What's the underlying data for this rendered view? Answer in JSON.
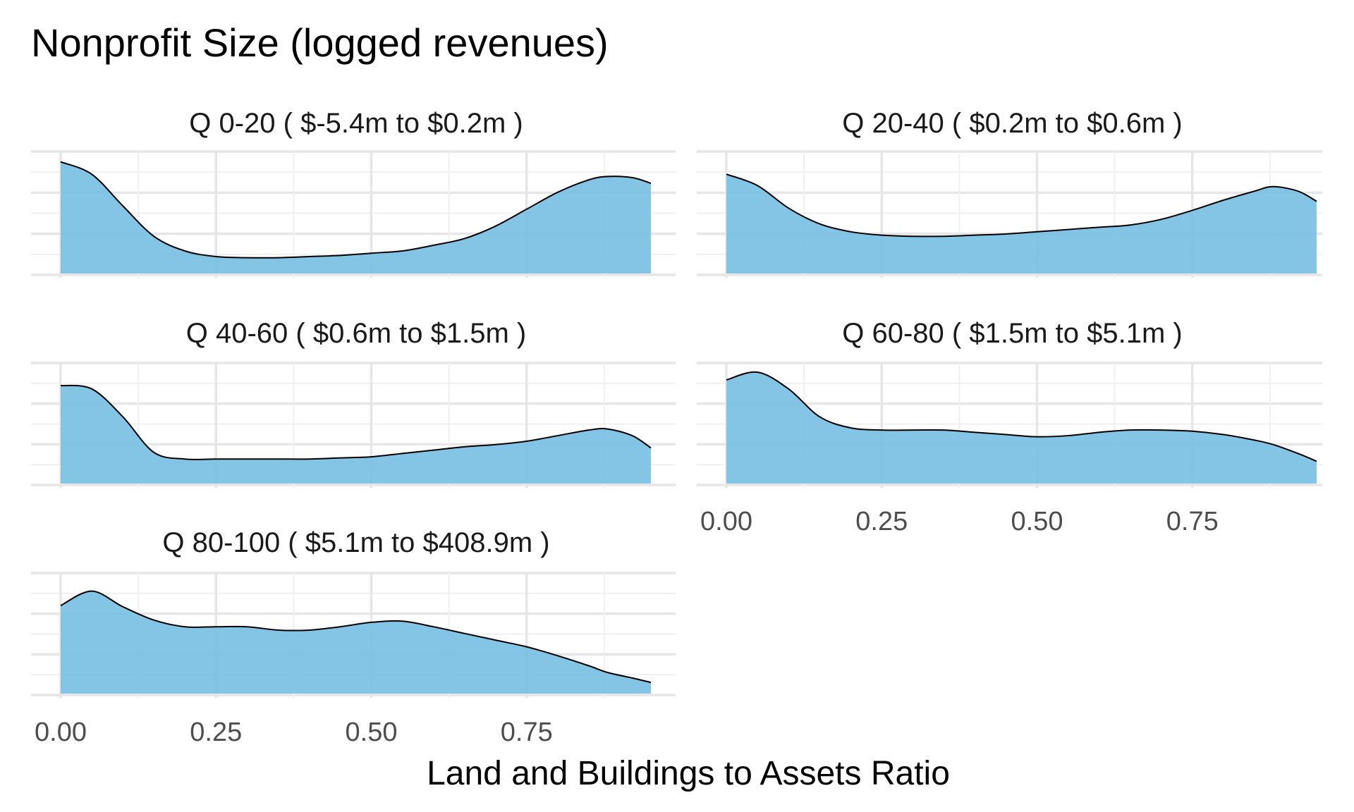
{
  "chart_data": {
    "type": "area",
    "title": "Nonprofit Size (logged revenues)",
    "xlabel": "Land and Buildings to Assets Ratio",
    "ylabel": "",
    "xlim": [
      0.0,
      0.95
    ],
    "x_ticks": [
      "0.00",
      "0.25",
      "0.50",
      "0.75"
    ],
    "y_ticks_shown": false,
    "grid": true,
    "fill_color": "#77bfe3",
    "fill_opacity": 0.9,
    "line_color": "#000000",
    "panels": [
      {
        "label": "Q 0-20   ( $-5.4m to $0.2m )",
        "x": [
          0.0,
          0.05,
          0.1,
          0.15,
          0.2,
          0.25,
          0.3,
          0.35,
          0.4,
          0.45,
          0.5,
          0.55,
          0.6,
          0.65,
          0.7,
          0.75,
          0.8,
          0.85,
          0.88,
          0.92,
          0.95
        ],
        "y": [
          0.99,
          0.88,
          0.6,
          0.33,
          0.2,
          0.15,
          0.14,
          0.14,
          0.15,
          0.16,
          0.18,
          0.2,
          0.25,
          0.31,
          0.42,
          0.57,
          0.72,
          0.83,
          0.86,
          0.85,
          0.8
        ]
      },
      {
        "label": "Q 20-40   ( $0.2m to $0.6m )",
        "x": [
          0.0,
          0.05,
          0.1,
          0.15,
          0.2,
          0.25,
          0.3,
          0.35,
          0.4,
          0.45,
          0.5,
          0.55,
          0.6,
          0.65,
          0.7,
          0.75,
          0.8,
          0.85,
          0.88,
          0.92,
          0.95
        ],
        "y": [
          0.88,
          0.78,
          0.58,
          0.44,
          0.37,
          0.34,
          0.33,
          0.33,
          0.34,
          0.35,
          0.37,
          0.39,
          0.41,
          0.43,
          0.48,
          0.56,
          0.65,
          0.73,
          0.77,
          0.73,
          0.64
        ]
      },
      {
        "label": "Q 40-60   ( $0.6m to $1.5m )",
        "x": [
          0.0,
          0.05,
          0.1,
          0.15,
          0.2,
          0.25,
          0.3,
          0.35,
          0.4,
          0.45,
          0.5,
          0.55,
          0.6,
          0.65,
          0.7,
          0.75,
          0.8,
          0.85,
          0.88,
          0.92,
          0.95
        ],
        "y": [
          0.88,
          0.85,
          0.6,
          0.28,
          0.22,
          0.22,
          0.22,
          0.22,
          0.22,
          0.23,
          0.24,
          0.27,
          0.3,
          0.33,
          0.35,
          0.38,
          0.43,
          0.48,
          0.49,
          0.43,
          0.32
        ]
      },
      {
        "label": "Q 60-80   ( $1.5m to $5.1m )",
        "x": [
          0.0,
          0.05,
          0.1,
          0.15,
          0.2,
          0.25,
          0.3,
          0.35,
          0.4,
          0.45,
          0.5,
          0.55,
          0.6,
          0.65,
          0.7,
          0.75,
          0.8,
          0.85,
          0.88,
          0.92,
          0.95
        ],
        "y": [
          0.93,
          1.0,
          0.85,
          0.6,
          0.5,
          0.48,
          0.48,
          0.48,
          0.46,
          0.44,
          0.42,
          0.43,
          0.46,
          0.48,
          0.48,
          0.47,
          0.44,
          0.39,
          0.35,
          0.27,
          0.2
        ]
      },
      {
        "label": "Q 80-100   ( $5.1m to $408.9m )",
        "x": [
          0.0,
          0.05,
          0.1,
          0.15,
          0.2,
          0.25,
          0.3,
          0.35,
          0.4,
          0.45,
          0.5,
          0.55,
          0.6,
          0.65,
          0.7,
          0.75,
          0.8,
          0.85,
          0.88,
          0.92,
          0.95
        ],
        "y": [
          0.79,
          0.92,
          0.78,
          0.66,
          0.6,
          0.6,
          0.6,
          0.57,
          0.57,
          0.6,
          0.64,
          0.65,
          0.6,
          0.54,
          0.48,
          0.42,
          0.34,
          0.25,
          0.19,
          0.14,
          0.1
        ]
      }
    ]
  }
}
